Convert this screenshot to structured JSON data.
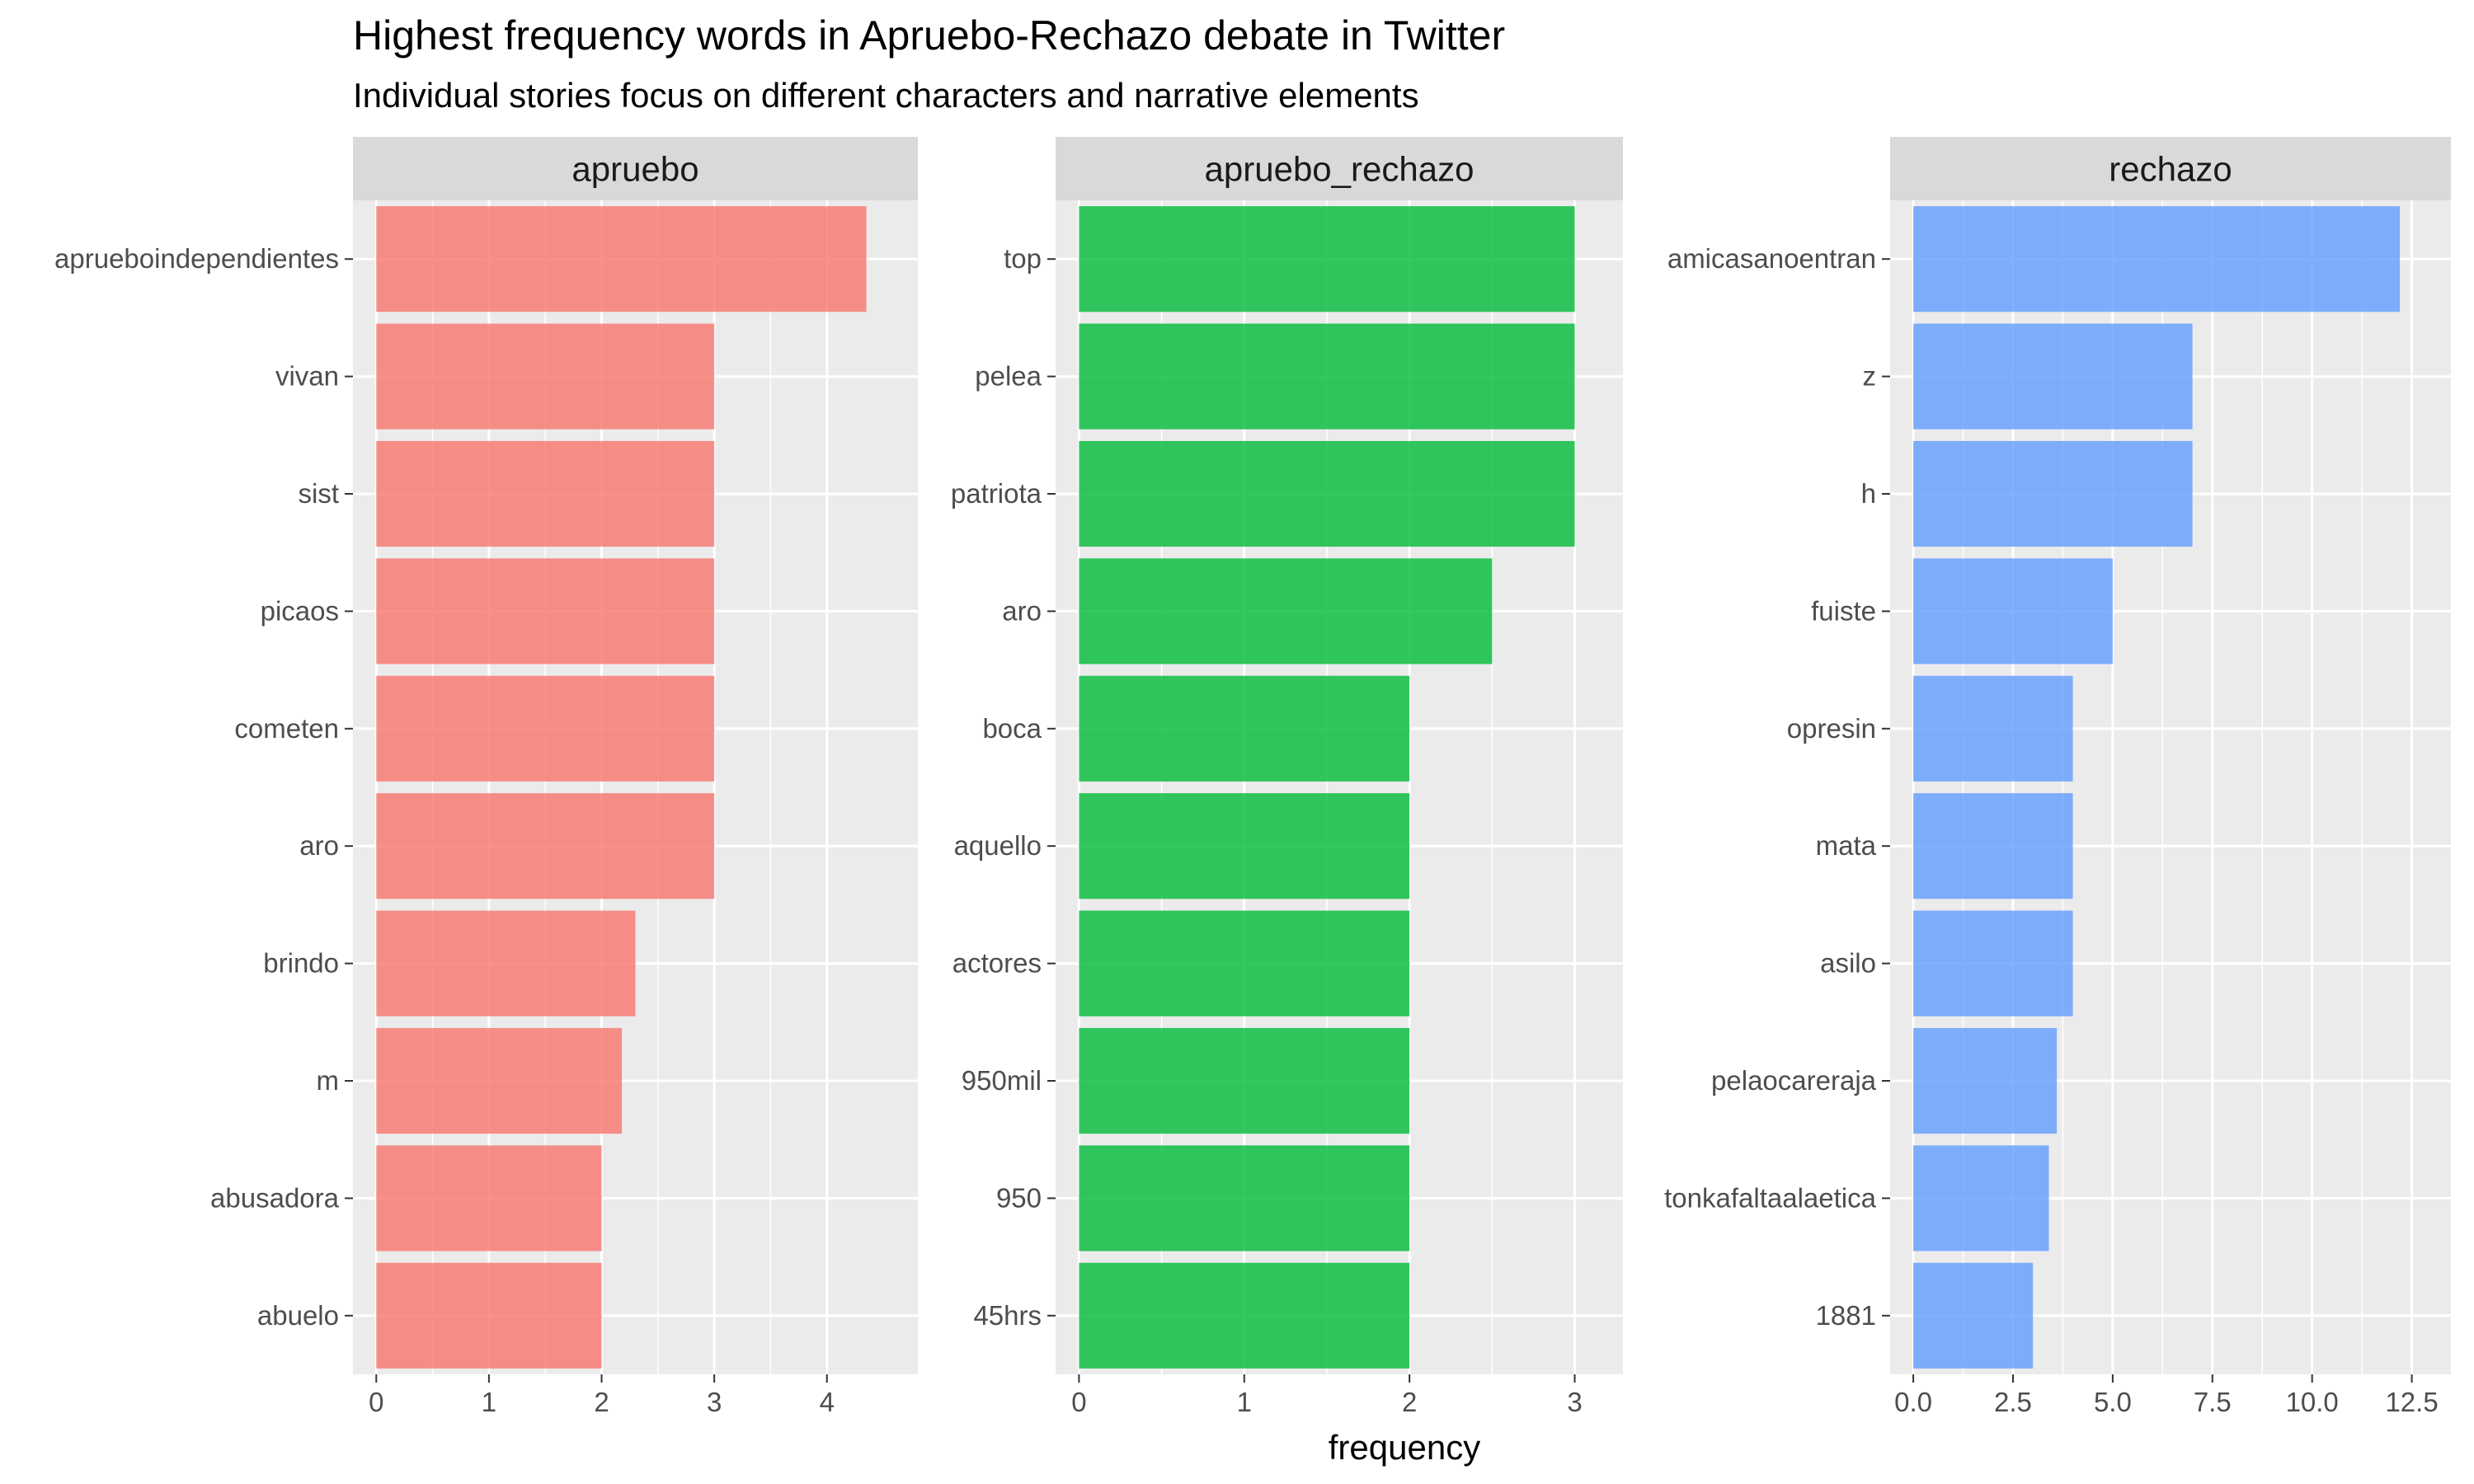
{
  "chart_data": {
    "type": "bar",
    "orientation": "horizontal",
    "title": "Highest frequency words in Apruebo-Rechazo debate in Twitter",
    "subtitle": "Individual stories focus on different characters and narrative elements",
    "xlabel": "frequency",
    "grid": true,
    "legend": "none",
    "panels": [
      {
        "name": "apruebo",
        "color": "#F8766D",
        "xlim": [
          0,
          4.6
        ],
        "ticks": [
          0,
          1,
          2,
          3,
          4
        ],
        "tick_labels": [
          "0",
          "1",
          "2",
          "3",
          "4"
        ],
        "categories": [
          "aprueboindependientes",
          "vivan",
          "sist",
          "picaos",
          "cometen",
          "aro",
          "brindo",
          "m",
          "abusadora",
          "abuelo"
        ],
        "values": [
          4.35,
          3,
          3,
          3,
          3,
          3,
          2.3,
          2.18,
          2,
          2
        ]
      },
      {
        "name": "apruebo_rechazo",
        "color": "#00BA38",
        "xlim": [
          0,
          3.15
        ],
        "ticks": [
          0,
          1,
          2,
          3
        ],
        "tick_labels": [
          "0",
          "1",
          "2",
          "3"
        ],
        "categories": [
          "top",
          "pelea",
          "patriota",
          "aro",
          "boca",
          "aquello",
          "actores",
          "950mil",
          "950",
          "45hrs"
        ],
        "values": [
          3,
          3,
          3,
          2.5,
          2,
          2,
          2,
          2,
          2,
          2
        ]
      },
      {
        "name": "rechazo",
        "color": "#619CFF",
        "xlim": [
          0,
          12.9
        ],
        "ticks": [
          0,
          2.5,
          5,
          7.5,
          10,
          12.5
        ],
        "tick_labels": [
          "0.0",
          "2.5",
          "5.0",
          "7.5",
          "10.0",
          "12.5"
        ],
        "categories": [
          "amicasanoentran",
          "z",
          "h",
          "fuiste",
          "opresin",
          "mata",
          "asilo",
          "pelaocareraja",
          "tonkafaltaalaetica",
          "1881"
        ],
        "values": [
          12.2,
          7,
          7,
          5,
          4,
          4,
          4,
          3.6,
          3.4,
          3
        ]
      }
    ]
  }
}
